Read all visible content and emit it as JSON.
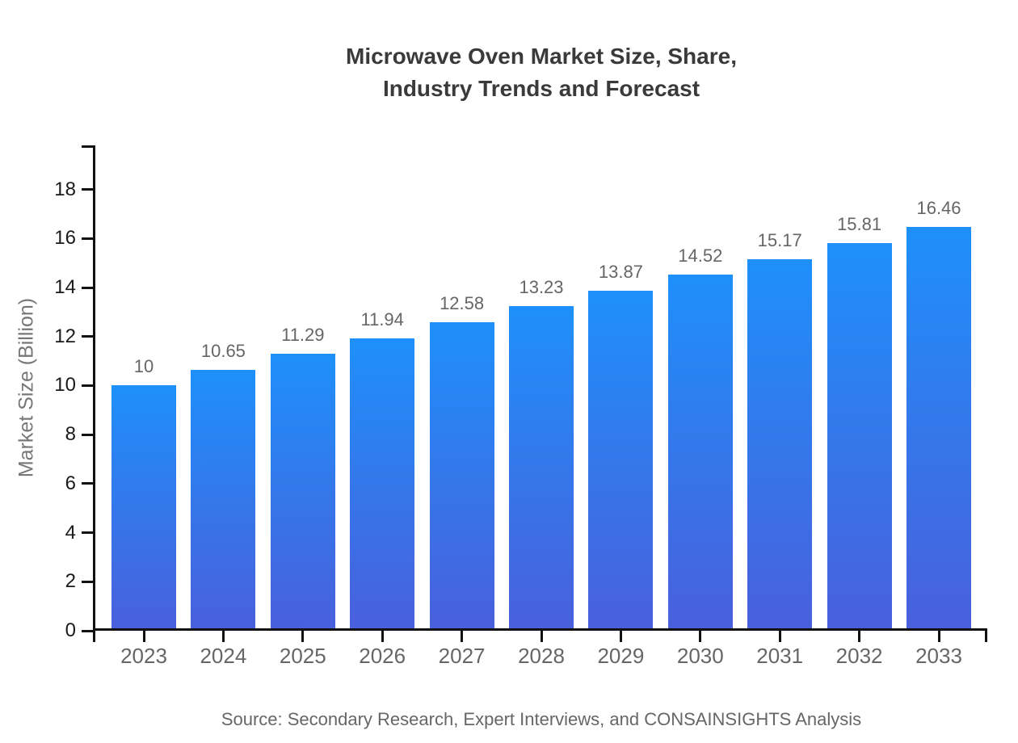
{
  "chart_data": {
    "type": "bar",
    "title": "Microwave Oven Market Size, Share,\nIndustry Trends and Forecast",
    "categories": [
      "2023",
      "2024",
      "2025",
      "2026",
      "2027",
      "2028",
      "2029",
      "2030",
      "2031",
      "2032",
      "2033"
    ],
    "values": [
      10,
      10.65,
      11.29,
      11.94,
      12.58,
      13.23,
      13.87,
      14.52,
      15.17,
      15.81,
      16.46
    ],
    "value_labels": [
      "10",
      "10.65",
      "11.29",
      "11.94",
      "12.58",
      "13.23",
      "13.87",
      "14.52",
      "15.17",
      "15.81",
      "16.46"
    ],
    "xlabel": "",
    "ylabel": "Market Size (Billion)",
    "ylim": [
      0,
      19.8
    ],
    "yticks": [
      0,
      2,
      4,
      6,
      8,
      10,
      12,
      14,
      16,
      18
    ],
    "grid": false,
    "legend_position": "none",
    "source_note": "Source: Secondary Research, Expert Interviews, and CONSAINSIGHTS Analysis",
    "colors": {
      "bar_gradient_top": "#1E90FA",
      "bar_gradient_bottom": "#4A5FDC",
      "axis": "#111111",
      "title_text": "#3A3A3A",
      "y_tick_label": "#1A1A1A",
      "x_tick_label": "#666666",
      "value_label": "#666666",
      "axis_title": "#777777",
      "source_text": "#666666"
    }
  }
}
